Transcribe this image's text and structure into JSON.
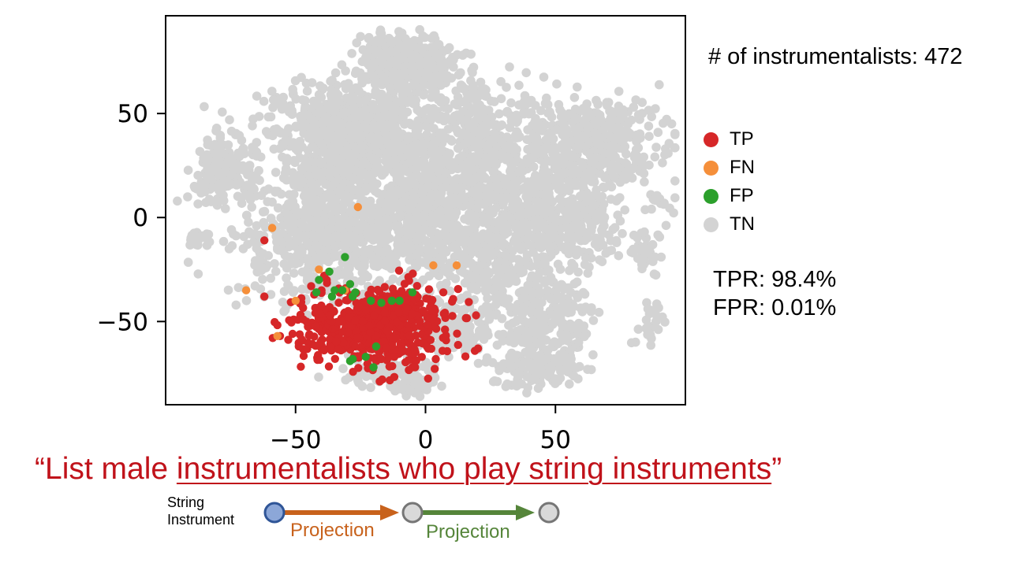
{
  "chart_data": {
    "type": "scatter",
    "title": "",
    "xlabel": "",
    "ylabel": "",
    "xlim": [
      -100,
      100
    ],
    "ylim": [
      -90,
      97
    ],
    "xticks": [
      -50,
      0,
      50
    ],
    "yticks": [
      50,
      0,
      -50
    ],
    "xtick_labels": [
      "−50",
      "0",
      "50"
    ],
    "ytick_labels": [
      "50",
      "0",
      "−50"
    ],
    "grid": false,
    "legend_position": "right",
    "series": [
      {
        "name": "TP",
        "color": "#d62728",
        "clusters": [
          {
            "center": [
              -19,
              -53
            ],
            "spread": [
              14,
              9
            ],
            "count": 550
          },
          {
            "center": [
              -10,
              -44
            ],
            "spread": [
              6,
              4
            ],
            "count": 80
          },
          {
            "center": [
              -38,
              -45
            ],
            "spread": [
              3,
              3
            ],
            "count": 8
          }
        ],
        "points": [
          [
            -62,
            -11
          ],
          [
            -62,
            -38
          ],
          [
            -56,
            -57
          ],
          [
            -44,
            -33
          ],
          [
            -38,
            -30
          ],
          [
            -47,
            -49
          ],
          [
            -40,
            -35
          ],
          [
            -32,
            -55
          ],
          [
            -24,
            -65
          ],
          [
            -12,
            -67
          ],
          [
            -5,
            -72
          ],
          [
            -4,
            -72
          ],
          [
            -6,
            -36
          ],
          [
            -39,
            -28
          ],
          [
            -17,
            -68
          ],
          [
            -27,
            -62
          ]
        ]
      },
      {
        "name": "FN",
        "color": "#f58f3a",
        "points": [
          [
            -59,
            -5
          ],
          [
            -26,
            5
          ],
          [
            -69,
            -35
          ],
          [
            -50,
            -40
          ],
          [
            -41,
            -25
          ],
          [
            3,
            -23
          ],
          [
            12,
            -23
          ],
          [
            -57,
            -57
          ],
          [
            -31,
            -35
          ]
        ]
      },
      {
        "name": "FP",
        "color": "#2ca02c",
        "points": [
          [
            -31,
            -19
          ],
          [
            -37,
            -26
          ],
          [
            -41,
            -30
          ],
          [
            -35,
            -35
          ],
          [
            -29,
            -32
          ],
          [
            -32,
            -35
          ],
          [
            -27,
            -36
          ],
          [
            -36,
            -38
          ],
          [
            -28,
            -38
          ],
          [
            -42,
            -36
          ],
          [
            -21,
            -40
          ],
          [
            -17,
            -41
          ],
          [
            -13,
            -40
          ],
          [
            -10,
            -40
          ],
          [
            -5,
            -36
          ],
          [
            -23,
            -67
          ],
          [
            -29,
            -69
          ],
          [
            -28,
            -68
          ],
          [
            -20,
            -72
          ],
          [
            -19,
            -62
          ]
        ]
      },
      {
        "name": "TN",
        "color": "#d3d3d3",
        "clusters": [
          {
            "center": [
              -7,
              76
            ],
            "spread": [
              9,
              6
            ],
            "count": 350
          },
          {
            "center": [
              -33,
              47
            ],
            "spread": [
              15,
              9
            ],
            "count": 420
          },
          {
            "center": [
              -16,
              33
            ],
            "spread": [
              11,
              7
            ],
            "count": 280
          },
          {
            "center": [
              -36,
              22
            ],
            "spread": [
              8,
              5
            ],
            "count": 150
          },
          {
            "center": [
              -77,
              24
            ],
            "spread": [
              7,
              8
            ],
            "count": 180
          },
          {
            "center": [
              -35,
              -8
            ],
            "spread": [
              19,
              14
            ],
            "count": 750
          },
          {
            "center": [
              0,
              8
            ],
            "spread": [
              10,
              10
            ],
            "count": 280
          },
          {
            "center": [
              24,
              30
            ],
            "spread": [
              11,
              15
            ],
            "count": 280
          },
          {
            "center": [
              63,
              37
            ],
            "spread": [
              13,
              10
            ],
            "count": 420
          },
          {
            "center": [
              52,
              2
            ],
            "spread": [
              12,
              12
            ],
            "count": 330
          },
          {
            "center": [
              27,
              -17
            ],
            "spread": [
              15,
              16
            ],
            "count": 380
          },
          {
            "center": [
              10,
              -55
            ],
            "spread": [
              8,
              6
            ],
            "count": 130
          },
          {
            "center": [
              46,
              -52
            ],
            "spread": [
              10,
              10
            ],
            "count": 220
          },
          {
            "center": [
              42,
              -73
            ],
            "spread": [
              8,
              5
            ],
            "count": 150
          },
          {
            "center": [
              -14,
              -74
            ],
            "spread": [
              9,
              5
            ],
            "count": 100
          },
          {
            "center": [
              -8,
              62
            ],
            "spread": [
              12,
              8
            ],
            "count": 120
          },
          {
            "center": [
              12,
              5
            ],
            "spread": [
              20,
              25
            ],
            "count": 300
          },
          {
            "center": [
              -87,
              -10
            ],
            "spread": [
              3,
              2
            ],
            "count": 25
          },
          {
            "center": [
              86,
              -50
            ],
            "spread": [
              3,
              6
            ],
            "count": 30
          },
          {
            "center": [
              85,
              -15
            ],
            "spread": [
              4,
              5
            ],
            "count": 30
          },
          {
            "center": [
              90,
              7
            ],
            "spread": [
              3,
              3
            ],
            "count": 15
          },
          {
            "center": [
              -4,
              -80
            ],
            "spread": [
              5,
              2
            ],
            "count": 40
          },
          {
            "center": [
              20,
              52
            ],
            "spread": [
              6,
              6
            ],
            "count": 60
          }
        ]
      }
    ]
  },
  "count_text": "# of instrumentalists: 472",
  "legend": [
    {
      "label": "TP",
      "color": "#d62728"
    },
    {
      "label": "FN",
      "color": "#f58f3a"
    },
    {
      "label": "FP",
      "color": "#2ca02c"
    },
    {
      "label": "TN",
      "color": "#d3d3d3"
    }
  ],
  "metrics": {
    "tpr": "TPR: 98.4%",
    "fpr": "FPR: 0.01%"
  },
  "query": {
    "open_quote": "“",
    "prefix": "List male ",
    "underlined": "instrumentalists who play string instruments",
    "close_quote": "”"
  },
  "entity": {
    "line1": "String",
    "line2": "Instrument"
  },
  "flow": {
    "step1_label": "Projection",
    "step1_color": "#c8621c",
    "step2_label": "Projection",
    "step2_color": "#55853a",
    "anchor_color": "#8ca7d8",
    "anchor_border": "#2f5597",
    "node_color": "#d9d9d9",
    "node_border": "#767676"
  }
}
